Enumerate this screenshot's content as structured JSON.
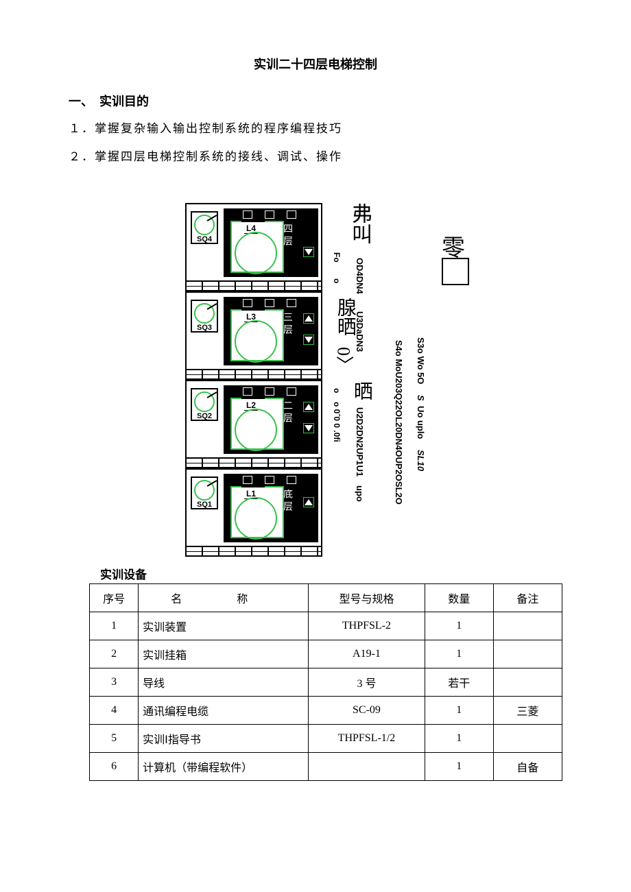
{
  "title": "实训二十四层电梯控制",
  "section1_head": "一、　实训目的",
  "goal1": "１．掌握复杂输入输出控制系统的程序编程技巧",
  "goal2": "２．掌握四层电梯控制系统的接线、调试、操作",
  "equipment_label": "实训设备",
  "table": {
    "headers": {
      "seq": "序号",
      "name": "名称",
      "spec": "型号与规格",
      "qty": "数量",
      "note": "备注"
    },
    "rows": [
      {
        "seq": "1",
        "name": "实训装置",
        "spec": "THPFSL-2",
        "qty": "1",
        "note": ""
      },
      {
        "seq": "2",
        "name": "实训挂箱",
        "spec": "A19-1",
        "qty": "1",
        "note": ""
      },
      {
        "seq": "3",
        "name": "导线",
        "spec": "3 号",
        "qty": "若干",
        "note": ""
      },
      {
        "seq": "4",
        "name": "通讯编程电缆",
        "spec": "SC-09",
        "qty": "1",
        "note": "三菱"
      },
      {
        "seq": "5",
        "name": "实训Ⅰ指导书",
        "spec": "THPFSL-1/2",
        "qty": "1",
        "note": ""
      },
      {
        "seq": "6",
        "name": "计算机（带编程软件）",
        "spec": "",
        "qty": "1",
        "note": "自备"
      }
    ]
  },
  "floors": [
    {
      "sq": "SQ4",
      "L": "L4",
      "cn": "四层",
      "arrows": [
        "dn"
      ]
    },
    {
      "sq": "SQ3",
      "L": "L3",
      "cn": "三层",
      "arrows": [
        "up",
        "dn"
      ]
    },
    {
      "sq": "SQ2",
      "L": "L2",
      "cn": "二层",
      "arrows": [
        "up",
        "dn"
      ]
    },
    {
      "sq": "SQ1",
      "L": "L1",
      "cn": "底层",
      "arrows": [
        "up"
      ]
    }
  ],
  "side_text": {
    "col1_top": "弗叫",
    "col1_mid": "腺晒",
    "col1_mid2": "0〉",
    "col1_shai": "晒",
    "col1_seg1": "OD4DN4",
    "col1_seg2": "U3DaDN3",
    "col1_seg3": "U2D2DN2UP1U1",
    "col1_left_a": "Fo",
    "col1_left_b": "o",
    "col1_left_c": "o",
    "col1_left_d": "o 0ˆ0 0 .0fi",
    "col1_left_e": "upo",
    "zero_cjk": "零",
    "col2": "S4o MoU203Q22OL20DN4OUP2OSL2O",
    "col3_a": "S3o Wo 5O",
    "col3_b": "S",
    "col3_c": "Uo uplo",
    "col3_d": "SL10"
  },
  "colors": {
    "green": "#37c24a",
    "black": "#000000",
    "white": "#ffffff"
  }
}
